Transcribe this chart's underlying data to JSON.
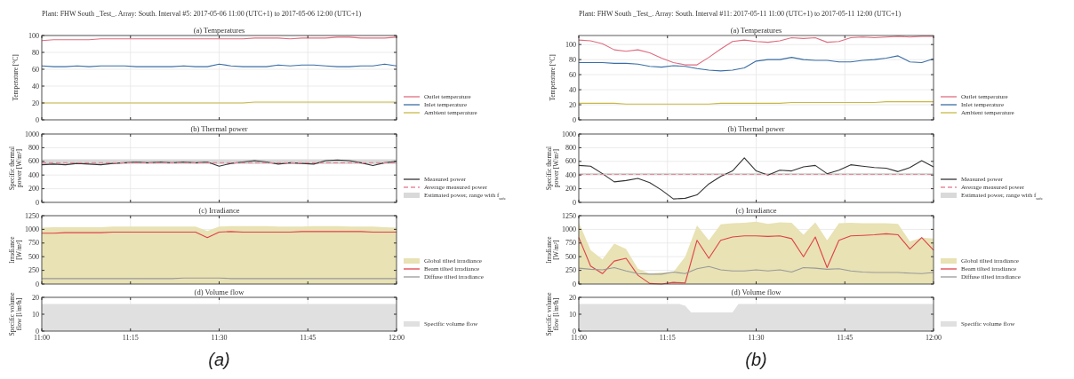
{
  "chart_data": [
    {
      "type": "line",
      "title": "(a) Temperatures",
      "ylabel": "Temperature [°C]",
      "annotations": [
        "Plant: FHW South _Test_. Array: South. Interval #5: 2017-05-06 11:00 (UTC+1) to 2017-05-06 12:00 (UTC+1)"
      ],
      "tick_labels": "y",
      "grid": true,
      "legend": "right",
      "xlim": [
        "2017-05-06T11:00",
        "2017-05-06T12:00"
      ],
      "xticks": [
        {
          "value": "2017-05-06T11:00",
          "label": null
        },
        {
          "value": "2017-05-06T11:15",
          "label": null
        },
        {
          "value": "2017-05-06T11:30",
          "label": null
        },
        {
          "value": "2017-05-06T11:45",
          "label": null
        },
        {
          "value": "2017-05-06T12:00",
          "label": null
        }
      ],
      "ylim": [
        0,
        100
      ],
      "yticks": [
        0,
        20,
        40,
        60,
        80,
        100
      ],
      "x": [
        "2017-05-06T11:00",
        "2017-05-06T11:02",
        "2017-05-06T11:04",
        "2017-05-06T11:06",
        "2017-05-06T11:08",
        "2017-05-06T11:10",
        "2017-05-06T11:12",
        "2017-05-06T11:14",
        "2017-05-06T11:16",
        "2017-05-06T11:18",
        "2017-05-06T11:20",
        "2017-05-06T11:22",
        "2017-05-06T11:24",
        "2017-05-06T11:26",
        "2017-05-06T11:28",
        "2017-05-06T11:30",
        "2017-05-06T11:32",
        "2017-05-06T11:34",
        "2017-05-06T11:36",
        "2017-05-06T11:38",
        "2017-05-06T11:40",
        "2017-05-06T11:42",
        "2017-05-06T11:44",
        "2017-05-06T11:46",
        "2017-05-06T11:48",
        "2017-05-06T11:50",
        "2017-05-06T11:52",
        "2017-05-06T11:54",
        "2017-05-06T11:56",
        "2017-05-06T11:58",
        "2017-05-06T12:00"
      ],
      "series": [
        {
          "name": "Outlet temperature",
          "color": "#e06c7f",
          "values": [
            94,
            95,
            95,
            95,
            95,
            96,
            96,
            96,
            96,
            96,
            96,
            96,
            96,
            96,
            96,
            96,
            96,
            96,
            97,
            97,
            97,
            96,
            97,
            97,
            97,
            98,
            98,
            97,
            97,
            97,
            98
          ]
        },
        {
          "name": "Inlet temperature",
          "color": "#3a6ea5",
          "values": [
            64,
            63,
            63,
            64,
            63,
            64,
            64,
            64,
            63,
            63,
            63,
            63,
            64,
            63,
            63,
            66,
            64,
            63,
            63,
            63,
            65,
            64,
            65,
            65,
            64,
            63,
            63,
            64,
            64,
            66,
            64
          ]
        },
        {
          "name": "Ambient temperature",
          "color": "#c9b846",
          "values": [
            20,
            20,
            20,
            20,
            20,
            20,
            20,
            20,
            20,
            20,
            20,
            20,
            20,
            20,
            20,
            20,
            20,
            20,
            21,
            21,
            21,
            21,
            21,
            21,
            21,
            21,
            21,
            21,
            21,
            21,
            21
          ]
        }
      ]
    },
    {
      "type": "line",
      "title": "(b) Thermal power",
      "ylabel": "Specific thermal\npower [W/m²]",
      "tick_labels": "y",
      "grid": true,
      "legend": "right",
      "xlim": [
        "2017-05-06T11:00",
        "2017-05-06T12:00"
      ],
      "xticks": [
        {
          "value": "2017-05-06T11:00",
          "label": null
        },
        {
          "value": "2017-05-06T11:15",
          "label": null
        },
        {
          "value": "2017-05-06T11:30",
          "label": null
        },
        {
          "value": "2017-05-06T11:45",
          "label": null
        },
        {
          "value": "2017-05-06T12:00",
          "label": null
        }
      ],
      "ylim": [
        0,
        1000
      ],
      "yticks": [
        0,
        200,
        400,
        600,
        800,
        1000
      ],
      "bands": [
        {
          "axis": "y",
          "from": 560,
          "to": 630,
          "label": "Estimated power, range with f$_{safe}$",
          "color": "#d9d9d9"
        }
      ],
      "ref_lines": [
        {
          "axis": "y",
          "value": 580,
          "label": "Average measured power",
          "color": "#e88a9a",
          "line_style": "dashed"
        }
      ],
      "x": [
        "2017-05-06T11:00",
        "2017-05-06T11:02",
        "2017-05-06T11:04",
        "2017-05-06T11:06",
        "2017-05-06T11:08",
        "2017-05-06T11:10",
        "2017-05-06T11:12",
        "2017-05-06T11:14",
        "2017-05-06T11:16",
        "2017-05-06T11:18",
        "2017-05-06T11:20",
        "2017-05-06T11:22",
        "2017-05-06T11:24",
        "2017-05-06T11:26",
        "2017-05-06T11:28",
        "2017-05-06T11:30",
        "2017-05-06T11:32",
        "2017-05-06T11:34",
        "2017-05-06T11:36",
        "2017-05-06T11:38",
        "2017-05-06T11:40",
        "2017-05-06T11:42",
        "2017-05-06T11:44",
        "2017-05-06T11:46",
        "2017-05-06T11:48",
        "2017-05-06T11:50",
        "2017-05-06T11:52",
        "2017-05-06T11:54",
        "2017-05-06T11:56",
        "2017-05-06T11:58",
        "2017-05-06T12:00"
      ],
      "series": [
        {
          "name": "Measured power",
          "color": "#333333",
          "values": [
            550,
            560,
            550,
            570,
            560,
            550,
            570,
            580,
            590,
            580,
            590,
            580,
            590,
            580,
            590,
            530,
            570,
            590,
            610,
            590,
            560,
            580,
            570,
            560,
            610,
            620,
            610,
            580,
            540,
            580,
            600
          ]
        }
      ]
    },
    {
      "type": "line",
      "title": "(c) Irradiance",
      "ylabel": "Irradiance\n[W/m²]",
      "tick_labels": "y",
      "grid": true,
      "legend": "right",
      "xlim": [
        "2017-05-06T11:00",
        "2017-05-06T12:00"
      ],
      "xticks": [
        {
          "value": "2017-05-06T11:00",
          "label": null
        },
        {
          "value": "2017-05-06T11:15",
          "label": null
        },
        {
          "value": "2017-05-06T11:30",
          "label": null
        },
        {
          "value": "2017-05-06T11:45",
          "label": null
        },
        {
          "value": "2017-05-06T12:00",
          "label": null
        }
      ],
      "ylim": [
        0,
        1250
      ],
      "yticks": [
        0,
        250,
        500,
        750,
        1000,
        1250
      ],
      "x": [
        "2017-05-06T11:00",
        "2017-05-06T11:02",
        "2017-05-06T11:04",
        "2017-05-06T11:06",
        "2017-05-06T11:08",
        "2017-05-06T11:10",
        "2017-05-06T11:12",
        "2017-05-06T11:14",
        "2017-05-06T11:16",
        "2017-05-06T11:18",
        "2017-05-06T11:20",
        "2017-05-06T11:22",
        "2017-05-06T11:24",
        "2017-05-06T11:26",
        "2017-05-06T11:28",
        "2017-05-06T11:30",
        "2017-05-06T11:32",
        "2017-05-06T11:34",
        "2017-05-06T11:36",
        "2017-05-06T11:38",
        "2017-05-06T11:40",
        "2017-05-06T11:42",
        "2017-05-06T11:44",
        "2017-05-06T11:46",
        "2017-05-06T11:48",
        "2017-05-06T11:50",
        "2017-05-06T11:52",
        "2017-05-06T11:54",
        "2017-05-06T11:56",
        "2017-05-06T11:58",
        "2017-05-06T12:00"
      ],
      "series": [
        {
          "type": "area",
          "name": "Global tilted irradiance",
          "color": "#e8e2b4",
          "values": [
            1030,
            1040,
            1040,
            1040,
            1040,
            1040,
            1050,
            1050,
            1050,
            1050,
            1050,
            1050,
            1050,
            1050,
            970,
            1050,
            1060,
            1060,
            1060,
            1060,
            1050,
            1050,
            1050,
            1060,
            1060,
            1060,
            1050,
            1050,
            1050,
            1040,
            1030
          ]
        },
        {
          "name": "Beam tilted irradiance",
          "color": "#e0404a",
          "values": [
            930,
            930,
            940,
            940,
            940,
            940,
            950,
            950,
            950,
            950,
            950,
            950,
            950,
            950,
            850,
            950,
            960,
            950,
            950,
            950,
            950,
            950,
            960,
            960,
            960,
            960,
            960,
            960,
            950,
            950,
            950
          ]
        },
        {
          "name": "Diffuse tilted irradiance",
          "color": "#999999",
          "values": [
            100,
            100,
            100,
            100,
            100,
            100,
            100,
            100,
            100,
            100,
            100,
            100,
            110,
            110,
            110,
            110,
            100,
            100,
            100,
            100,
            100,
            100,
            100,
            100,
            100,
            100,
            100,
            100,
            100,
            100,
            100
          ]
        }
      ]
    },
    {
      "type": "area",
      "title": "(d) Volume flow",
      "ylabel": "Specific volume\nflow [l/m²h]",
      "annotations": [
        "(a)"
      ],
      "grid": true,
      "legend": "right",
      "xlim": [
        "2017-05-06T11:00",
        "2017-05-06T12:00"
      ],
      "xticks": [
        {
          "value": "2017-05-06T11:00",
          "label": "11:00"
        },
        {
          "value": "2017-05-06T11:15",
          "label": "11:15"
        },
        {
          "value": "2017-05-06T11:30",
          "label": "11:30"
        },
        {
          "value": "2017-05-06T11:45",
          "label": "11:45"
        },
        {
          "value": "2017-05-06T12:00",
          "label": "12:00"
        }
      ],
      "ylim": [
        0,
        20
      ],
      "yticks": [
        0,
        10,
        20
      ],
      "x": [
        "2017-05-06T11:00",
        "2017-05-06T12:00"
      ],
      "series": [
        {
          "name": "Specific volume flow",
          "color": "#e0e0e0",
          "values": [
            16,
            16
          ]
        }
      ]
    },
    {
      "type": "line",
      "title": "(a) Temperatures",
      "ylabel": "Temperature [°C]",
      "annotations": [
        "Plant: FHW South _Test_. Array: South. Interval #11: 2017-05-11 11:00 (UTC+1) to 2017-05-11 12:00 (UTC+1)"
      ],
      "tick_labels": "y",
      "grid": true,
      "legend": "right",
      "xlim": [
        "2017-05-11T11:00",
        "2017-05-11T12:00"
      ],
      "xticks": [
        {
          "value": "2017-05-11T11:00",
          "label": null
        },
        {
          "value": "2017-05-11T11:15",
          "label": null
        },
        {
          "value": "2017-05-11T11:30",
          "label": null
        },
        {
          "value": "2017-05-11T11:45",
          "label": null
        },
        {
          "value": "2017-05-11T12:00",
          "label": null
        }
      ],
      "ylim": [
        0,
        112
      ],
      "yticks": [
        0,
        20,
        40,
        60,
        80,
        100
      ],
      "x": [
        "2017-05-11T11:00",
        "2017-05-11T11:02",
        "2017-05-11T11:04",
        "2017-05-11T11:06",
        "2017-05-11T11:08",
        "2017-05-11T11:10",
        "2017-05-11T11:12",
        "2017-05-11T11:14",
        "2017-05-11T11:16",
        "2017-05-11T11:18",
        "2017-05-11T11:20",
        "2017-05-11T11:22",
        "2017-05-11T11:24",
        "2017-05-11T11:26",
        "2017-05-11T11:28",
        "2017-05-11T11:30",
        "2017-05-11T11:32",
        "2017-05-11T11:34",
        "2017-05-11T11:36",
        "2017-05-11T11:38",
        "2017-05-11T11:40",
        "2017-05-11T11:42",
        "2017-05-11T11:44",
        "2017-05-11T11:46",
        "2017-05-11T11:48",
        "2017-05-11T11:50",
        "2017-05-11T11:52",
        "2017-05-11T11:54",
        "2017-05-11T11:56",
        "2017-05-11T11:58",
        "2017-05-11T12:00"
      ],
      "series": [
        {
          "name": "Outlet temperature",
          "color": "#e06c7f",
          "values": [
            106,
            105,
            101,
            93,
            91,
            93,
            89,
            82,
            76,
            73,
            73,
            83,
            94,
            104,
            106,
            104,
            103,
            105,
            109,
            108,
            109,
            103,
            104,
            109,
            110,
            109,
            110,
            111,
            110,
            111,
            111
          ]
        },
        {
          "name": "Inlet temperature",
          "color": "#3a6ea5",
          "values": [
            76,
            76,
            76,
            75,
            75,
            74,
            71,
            70,
            72,
            71,
            68,
            66,
            65,
            66,
            69,
            78,
            80,
            80,
            83,
            80,
            79,
            79,
            77,
            77,
            79,
            80,
            82,
            85,
            77,
            76,
            81
          ]
        },
        {
          "name": "Ambient temperature",
          "color": "#c9b846",
          "values": [
            22,
            22,
            22,
            22,
            21,
            21,
            21,
            21,
            21,
            21,
            21,
            21,
            22,
            22,
            22,
            22,
            22,
            22,
            23,
            23,
            23,
            23,
            23,
            23,
            23,
            23,
            24,
            24,
            24,
            24,
            24
          ]
        }
      ]
    },
    {
      "type": "line",
      "title": "(b) Thermal power",
      "ylabel": "Specific thermal\npower [W/m²]",
      "tick_labels": "y",
      "grid": true,
      "legend": "right",
      "xlim": [
        "2017-05-11T11:00",
        "2017-05-11T12:00"
      ],
      "xticks": [
        {
          "value": "2017-05-11T11:00",
          "label": null
        },
        {
          "value": "2017-05-11T11:15",
          "label": null
        },
        {
          "value": "2017-05-11T11:30",
          "label": null
        },
        {
          "value": "2017-05-11T11:45",
          "label": null
        },
        {
          "value": "2017-05-11T12:00",
          "label": null
        }
      ],
      "ylim": [
        0,
        1000
      ],
      "yticks": [
        0,
        200,
        400,
        600,
        800,
        1000
      ],
      "bands": [
        {
          "axis": "y",
          "from": 400,
          "to": 430,
          "label": "Estimated power, range with f$_{safe}$",
          "color": "#d9d9d9"
        }
      ],
      "ref_lines": [
        {
          "axis": "y",
          "value": 410,
          "label": "Average measured power",
          "color": "#e88a9a",
          "line_style": "dashed"
        }
      ],
      "x": [
        "2017-05-11T11:00",
        "2017-05-11T11:02",
        "2017-05-11T11:04",
        "2017-05-11T11:06",
        "2017-05-11T11:08",
        "2017-05-11T11:10",
        "2017-05-11T11:12",
        "2017-05-11T11:14",
        "2017-05-11T11:16",
        "2017-05-11T11:18",
        "2017-05-11T11:20",
        "2017-05-11T11:22",
        "2017-05-11T11:24",
        "2017-05-11T11:26",
        "2017-05-11T11:28",
        "2017-05-11T11:30",
        "2017-05-11T11:32",
        "2017-05-11T11:34",
        "2017-05-11T11:36",
        "2017-05-11T11:38",
        "2017-05-11T11:40",
        "2017-05-11T11:42",
        "2017-05-11T11:44",
        "2017-05-11T11:46",
        "2017-05-11T11:48",
        "2017-05-11T11:50",
        "2017-05-11T11:52",
        "2017-05-11T11:54",
        "2017-05-11T11:56",
        "2017-05-11T11:58",
        "2017-05-11T12:00"
      ],
      "series": [
        {
          "name": "Measured power",
          "color": "#333333",
          "values": [
            540,
            530,
            420,
            300,
            320,
            350,
            290,
            180,
            50,
            60,
            110,
            270,
            380,
            460,
            650,
            460,
            400,
            470,
            460,
            520,
            540,
            420,
            470,
            550,
            530,
            510,
            500,
            450,
            510,
            610,
            520
          ]
        }
      ]
    },
    {
      "type": "line",
      "title": "(c) Irradiance",
      "ylabel": "Irradiance\n[W/m²]",
      "tick_labels": "y",
      "grid": true,
      "legend": "right",
      "xlim": [
        "2017-05-11T11:00",
        "2017-05-11T12:00"
      ],
      "xticks": [
        {
          "value": "2017-05-11T11:00",
          "label": null
        },
        {
          "value": "2017-05-11T11:15",
          "label": null
        },
        {
          "value": "2017-05-11T11:30",
          "label": null
        },
        {
          "value": "2017-05-11T11:45",
          "label": null
        },
        {
          "value": "2017-05-11T12:00",
          "label": null
        }
      ],
      "ylim": [
        0,
        1250
      ],
      "yticks": [
        0,
        250,
        500,
        750,
        1000,
        1250
      ],
      "x": [
        "2017-05-11T11:00",
        "2017-05-11T11:02",
        "2017-05-11T11:04",
        "2017-05-11T11:06",
        "2017-05-11T11:08",
        "2017-05-11T11:10",
        "2017-05-11T11:12",
        "2017-05-11T11:14",
        "2017-05-11T11:16",
        "2017-05-11T11:18",
        "2017-05-11T11:20",
        "2017-05-11T11:22",
        "2017-05-11T11:24",
        "2017-05-11T11:26",
        "2017-05-11T11:28",
        "2017-05-11T11:30",
        "2017-05-11T11:32",
        "2017-05-11T11:34",
        "2017-05-11T11:36",
        "2017-05-11T11:38",
        "2017-05-11T11:40",
        "2017-05-11T11:42",
        "2017-05-11T11:44",
        "2017-05-11T11:46",
        "2017-05-11T11:48",
        "2017-05-11T11:50",
        "2017-05-11T11:52",
        "2017-05-11T11:54",
        "2017-05-11T11:56",
        "2017-05-11T11:58",
        "2017-05-11T12:00"
      ],
      "series": [
        {
          "type": "area",
          "name": "Global tilted irradiance",
          "color": "#e8e2b4",
          "values": [
            1130,
            620,
            450,
            740,
            640,
            280,
            190,
            210,
            220,
            500,
            1070,
            800,
            1090,
            1110,
            1120,
            1140,
            1100,
            1130,
            1120,
            900,
            1130,
            800,
            1110,
            1120,
            1110,
            1110,
            1110,
            1100,
            780,
            850,
            830
          ]
        },
        {
          "name": "Beam tilted irradiance",
          "color": "#e0404a",
          "values": [
            850,
            330,
            190,
            420,
            470,
            160,
            10,
            0,
            30,
            20,
            800,
            470,
            800,
            860,
            880,
            880,
            870,
            880,
            830,
            500,
            860,
            300,
            800,
            880,
            890,
            900,
            920,
            900,
            640,
            850,
            620
          ]
        },
        {
          "name": "Diffuse tilted irradiance",
          "color": "#999999",
          "values": [
            290,
            270,
            260,
            300,
            240,
            190,
            180,
            180,
            220,
            190,
            280,
            320,
            260,
            240,
            240,
            260,
            240,
            260,
            220,
            300,
            290,
            270,
            280,
            240,
            220,
            210,
            210,
            210,
            200,
            190,
            210
          ]
        }
      ]
    },
    {
      "type": "area",
      "title": "(d) Volume flow",
      "ylabel": "Specific volume\nflow [l/m²h]",
      "annotations": [
        "(b)"
      ],
      "grid": true,
      "legend": "right",
      "xlim": [
        "2017-05-11T11:00",
        "2017-05-11T12:00"
      ],
      "xticks": [
        {
          "value": "2017-05-11T11:00",
          "label": "11:00"
        },
        {
          "value": "2017-05-11T11:15",
          "label": "11:15"
        },
        {
          "value": "2017-05-11T11:30",
          "label": "11:30"
        },
        {
          "value": "2017-05-11T11:45",
          "label": "11:45"
        },
        {
          "value": "2017-05-11T12:00",
          "label": "12:00"
        }
      ],
      "ylim": [
        0,
        20
      ],
      "yticks": [
        0,
        10,
        20
      ],
      "x": [
        "2017-05-11T11:00",
        "2017-05-11T11:17",
        "2017-05-11T11:18",
        "2017-05-11T11:19",
        "2017-05-11T11:20",
        "2017-05-11T11:22",
        "2017-05-11T11:26",
        "2017-05-11T11:27",
        "2017-05-11T12:00"
      ],
      "series": [
        {
          "name": "Specific volume flow",
          "color": "#e0e0e0",
          "values": [
            16,
            16,
            15,
            11,
            11,
            11,
            11,
            16,
            16
          ]
        }
      ]
    }
  ]
}
